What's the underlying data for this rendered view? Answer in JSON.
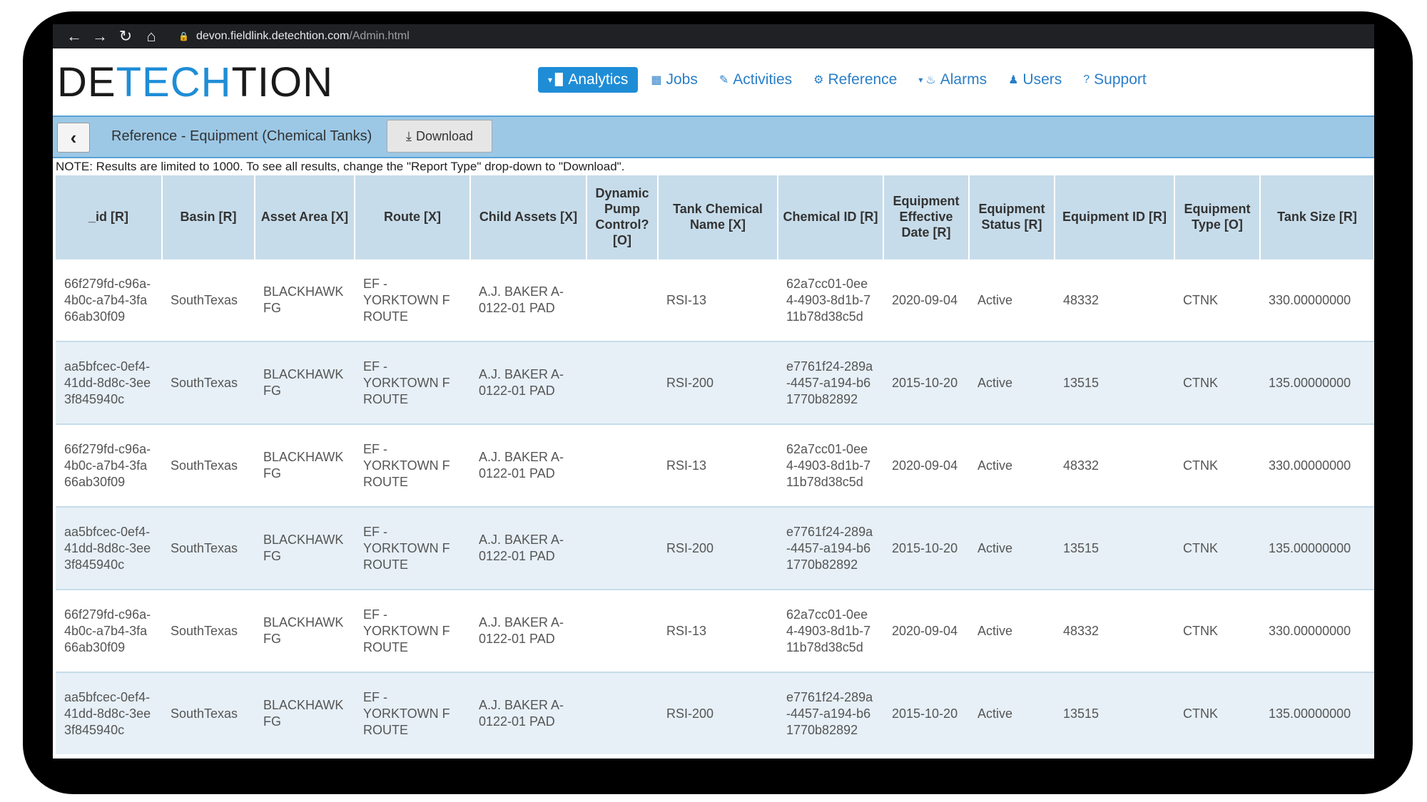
{
  "browser": {
    "url_host": "devon.fieldlink.detechtion.com",
    "url_path": "/Admin.html"
  },
  "logo": {
    "part1": "DE",
    "part2": "TECH",
    "part3": "TION"
  },
  "nav": [
    {
      "label": "Analytics",
      "icon": "bar-chart-icon",
      "active": true
    },
    {
      "label": "Jobs",
      "icon": "calendar-icon"
    },
    {
      "label": "Activities",
      "icon": "wrench-icon"
    },
    {
      "label": "Reference",
      "icon": "gear-icon"
    },
    {
      "label": "Alarms",
      "icon": "bell-icon"
    },
    {
      "label": "Users",
      "icon": "user-icon"
    },
    {
      "label": "Support",
      "icon": "question-icon"
    }
  ],
  "subheader": {
    "title": "Reference - Equipment (Chemical Tanks)",
    "download_label": "Download"
  },
  "note": "NOTE: Results are limited to 1000. To see all results, change the \"Report Type\" drop-down to \"Download\".",
  "table": {
    "headers": [
      "_id [R]",
      "Basin [R]",
      "Asset Area [X]",
      "Route [X]",
      "Child Assets [X]",
      "Dynamic Pump Control? [O]",
      "Tank Chemical Name [X]",
      "Chemical ID [R]",
      "Equipment Effective Date [R]",
      "Equipment Status [R]",
      "Equipment ID [R]",
      "Equipment Type [O]",
      "Tank Size [R]"
    ],
    "rows": [
      [
        "66f279fd-c96a-4b0c-a7b4-3fa66ab30f09",
        "SouthTexas",
        "BLACKHAWK FG",
        "EF - YORKTOWN F ROUTE",
        "A.J. BAKER A-0122-01 PAD",
        "",
        "RSI-13",
        "62a7cc01-0ee4-4903-8d1b-711b78d38c5d",
        "2020-09-04",
        "Active",
        "48332",
        "CTNK",
        "330.00000000"
      ],
      [
        "aa5bfcec-0ef4-41dd-8d8c-3ee3f845940c",
        "SouthTexas",
        "BLACKHAWK FG",
        "EF - YORKTOWN F ROUTE",
        "A.J. BAKER A-0122-01 PAD",
        "",
        "RSI-200",
        "e7761f24-289a-4457-a194-b61770b82892",
        "2015-10-20",
        "Active",
        "13515",
        "CTNK",
        "135.00000000"
      ],
      [
        "66f279fd-c96a-4b0c-a7b4-3fa66ab30f09",
        "SouthTexas",
        "BLACKHAWK FG",
        "EF - YORKTOWN F ROUTE",
        "A.J. BAKER A-0122-01 PAD",
        "",
        "RSI-13",
        "62a7cc01-0ee4-4903-8d1b-711b78d38c5d",
        "2020-09-04",
        "Active",
        "48332",
        "CTNK",
        "330.00000000"
      ],
      [
        "aa5bfcec-0ef4-41dd-8d8c-3ee3f845940c",
        "SouthTexas",
        "BLACKHAWK FG",
        "EF - YORKTOWN F ROUTE",
        "A.J. BAKER A-0122-01 PAD",
        "",
        "RSI-200",
        "e7761f24-289a-4457-a194-b61770b82892",
        "2015-10-20",
        "Active",
        "13515",
        "CTNK",
        "135.00000000"
      ],
      [
        "66f279fd-c96a-4b0c-a7b4-3fa66ab30f09",
        "SouthTexas",
        "BLACKHAWK FG",
        "EF - YORKTOWN F ROUTE",
        "A.J. BAKER A-0122-01 PAD",
        "",
        "RSI-13",
        "62a7cc01-0ee4-4903-8d1b-711b78d38c5d",
        "2020-09-04",
        "Active",
        "48332",
        "CTNK",
        "330.00000000"
      ],
      [
        "aa5bfcec-0ef4-41dd-8d8c-3ee3f845940c",
        "SouthTexas",
        "BLACKHAWK FG",
        "EF - YORKTOWN F ROUTE",
        "A.J. BAKER A-0122-01 PAD",
        "",
        "RSI-200",
        "e7761f24-289a-4457-a194-b61770b82892",
        "2015-10-20",
        "Active",
        "13515",
        "CTNK",
        "135.00000000"
      ]
    ]
  }
}
